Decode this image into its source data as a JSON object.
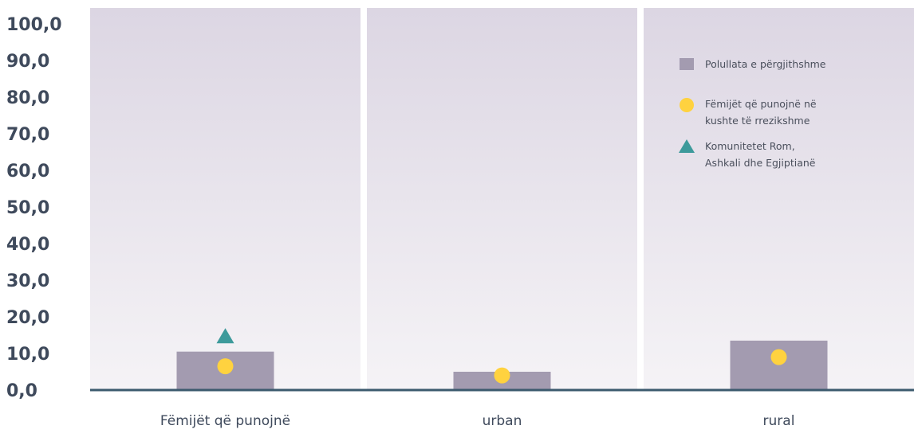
{
  "chart_data": {
    "type": "bar",
    "categories": [
      "Fëmijët që punojnë",
      "urban",
      "rural"
    ],
    "ylim": [
      0,
      100
    ],
    "yticks": [
      "100,0",
      "90,0",
      "80,0",
      "70,0",
      "60,0",
      "50,0",
      "40,0",
      "30,0",
      "20,0",
      "10,0",
      "0,0"
    ],
    "series": [
      {
        "name": "Polullata e përgjithshme",
        "kind": "bar",
        "color": "#a39bb0",
        "values": [
          10.5,
          5.0,
          13.5
        ]
      },
      {
        "name": "Fëmijët që punojnë në kushte të rrezikshme",
        "kind": "circle",
        "color": "#ffd23f",
        "values": [
          6.5,
          4.0,
          9.0
        ]
      },
      {
        "name": "Komunitetet Rom, Ashkali dhe Egjiptianë",
        "kind": "triangle",
        "color": "#3d9a9b",
        "values": [
          14.5,
          null,
          null
        ]
      }
    ],
    "legend": {
      "position": "top-right",
      "items": [
        {
          "lines": [
            "Polullata e përgjithshme"
          ]
        },
        {
          "lines": [
            "Fëmijët që punojnë në",
            "kushte të rrezikshme"
          ]
        },
        {
          "lines": [
            "Komunitetet Rom,",
            "Ashkali dhe Egjiptianë"
          ]
        }
      ]
    },
    "colors": {
      "panel_top": "#dcd6e3",
      "panel_bottom": "#f5f3f6",
      "baseline": "#3c5a6e"
    }
  }
}
